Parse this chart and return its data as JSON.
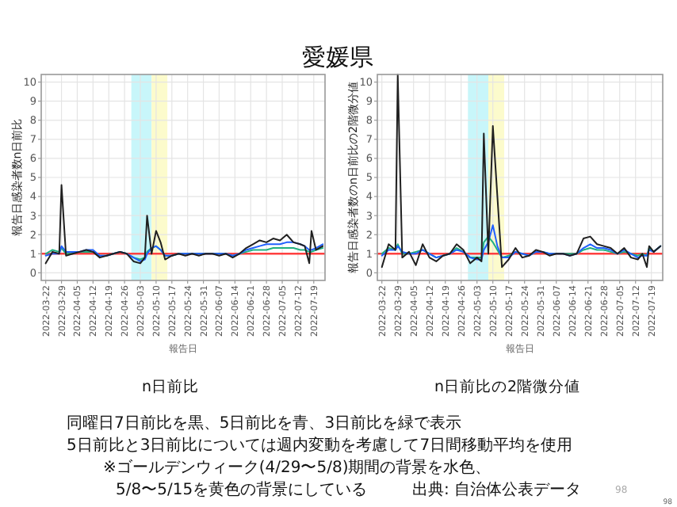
{
  "chart_data": [
    {
      "type": "line",
      "title": "n日前比",
      "xlabel": "報告日",
      "ylabel": "報告日感染者数n日前比",
      "x": [
        "2022-03-22",
        "2022-03-25",
        "2022-03-28",
        "2022-03-29",
        "2022-03-31",
        "2022-04-03",
        "2022-04-06",
        "2022-04-09",
        "2022-04-12",
        "2022-04-15",
        "2022-04-18",
        "2022-04-21",
        "2022-04-24",
        "2022-04-27",
        "2022-04-30",
        "2022-05-03",
        "2022-05-05",
        "2022-05-06",
        "2022-05-08",
        "2022-05-10",
        "2022-05-12",
        "2022-05-14",
        "2022-05-17",
        "2022-05-20",
        "2022-05-23",
        "2022-05-26",
        "2022-05-29",
        "2022-06-01",
        "2022-06-04",
        "2022-06-07",
        "2022-06-10",
        "2022-06-13",
        "2022-06-16",
        "2022-06-19",
        "2022-06-22",
        "2022-06-25",
        "2022-06-28",
        "2022-07-01",
        "2022-07-04",
        "2022-07-07",
        "2022-07-10",
        "2022-07-13",
        "2022-07-15",
        "2022-07-17",
        "2022-07-18",
        "2022-07-20",
        "2022-07-23"
      ],
      "series": [
        {
          "color": "#20b080",
          "values": [
            1.0,
            1.2,
            1.1,
            1.3,
            1.0,
            1.0,
            1.1,
            1.1,
            1.1,
            0.9,
            0.9,
            1.0,
            1.1,
            1.0,
            0.8,
            0.7,
            0.8,
            1.1,
            1.3,
            1.4,
            1.2,
            0.9,
            0.9,
            1.0,
            1.0,
            1.0,
            1.0,
            1.0,
            1.0,
            1.0,
            1.0,
            0.9,
            1.0,
            1.1,
            1.2,
            1.2,
            1.2,
            1.3,
            1.3,
            1.3,
            1.3,
            1.2,
            1.2,
            1.1,
            1.1,
            1.2,
            1.3
          ]
        },
        {
          "color": "#2060ff",
          "values": [
            0.9,
            1.0,
            1.0,
            1.4,
            1.1,
            1.1,
            1.1,
            1.2,
            1.2,
            0.9,
            0.9,
            1.0,
            1.1,
            1.0,
            0.8,
            0.6,
            0.7,
            1.0,
            1.3,
            1.4,
            1.2,
            0.9,
            0.9,
            1.0,
            1.0,
            1.0,
            1.0,
            1.0,
            1.0,
            1.0,
            1.0,
            0.9,
            1.0,
            1.2,
            1.3,
            1.4,
            1.5,
            1.5,
            1.5,
            1.6,
            1.6,
            1.5,
            1.4,
            1.2,
            1.2,
            1.3,
            1.5
          ]
        },
        {
          "color": "#202020",
          "values": [
            0.5,
            1.1,
            1.0,
            4.6,
            0.9,
            1.0,
            1.1,
            1.2,
            1.1,
            0.8,
            0.9,
            1.0,
            1.1,
            1.0,
            0.6,
            0.5,
            0.8,
            3.0,
            1.0,
            2.2,
            1.6,
            0.7,
            0.9,
            1.0,
            0.9,
            1.0,
            0.9,
            1.0,
            1.0,
            0.9,
            1.0,
            0.8,
            1.0,
            1.3,
            1.5,
            1.7,
            1.6,
            1.8,
            1.7,
            2.0,
            1.6,
            1.5,
            1.4,
            0.5,
            2.2,
            1.2,
            1.4
          ]
        }
      ],
      "xlim": [
        "2022-03-20",
        "2022-07-24"
      ],
      "xticks": [
        "2022-03-22",
        "2022-03-29",
        "2022-04-05",
        "2022-04-12",
        "2022-04-19",
        "2022-04-26",
        "2022-05-03",
        "2022-05-10",
        "2022-05-17",
        "2022-05-24",
        "2022-05-31",
        "2022-06-07",
        "2022-06-14",
        "2022-06-21",
        "2022-06-28",
        "2022-07-05",
        "2022-07-12",
        "2022-07-19"
      ],
      "ylim": [
        -0.4,
        10.4
      ],
      "yticks": [
        0,
        1,
        2,
        3,
        4,
        5,
        6,
        7,
        8,
        9,
        10
      ],
      "grid": true,
      "ref_lines": [
        {
          "axis": "y",
          "value": 1,
          "color": "#ff4040"
        }
      ],
      "bands": [
        {
          "axis": "x",
          "from": "2022-04-29",
          "to": "2022-05-08",
          "color": "#c8f6fa"
        },
        {
          "axis": "x",
          "from": "2022-05-08",
          "to": "2022-05-15",
          "color": "#fcfbcc"
        }
      ]
    },
    {
      "type": "line",
      "title": "n日前比の2階微分値",
      "xlabel": "報告日",
      "ylabel": "報告日感染者数のn日前比の2階微分値",
      "x": [
        "2022-03-22",
        "2022-03-25",
        "2022-03-28",
        "2022-03-29",
        "2022-03-31",
        "2022-04-03",
        "2022-04-06",
        "2022-04-09",
        "2022-04-12",
        "2022-04-15",
        "2022-04-18",
        "2022-04-21",
        "2022-04-24",
        "2022-04-27",
        "2022-04-30",
        "2022-05-03",
        "2022-05-05",
        "2022-05-06",
        "2022-05-08",
        "2022-05-10",
        "2022-05-12",
        "2022-05-14",
        "2022-05-17",
        "2022-05-20",
        "2022-05-23",
        "2022-05-26",
        "2022-05-29",
        "2022-06-01",
        "2022-06-04",
        "2022-06-07",
        "2022-06-10",
        "2022-06-13",
        "2022-06-16",
        "2022-06-19",
        "2022-06-22",
        "2022-06-25",
        "2022-06-28",
        "2022-07-01",
        "2022-07-04",
        "2022-07-07",
        "2022-07-10",
        "2022-07-13",
        "2022-07-15",
        "2022-07-17",
        "2022-07-18",
        "2022-07-20",
        "2022-07-23"
      ],
      "series": [
        {
          "color": "#20b080",
          "values": [
            1.0,
            1.3,
            1.2,
            1.5,
            1.0,
            1.0,
            1.1,
            1.2,
            1.0,
            0.8,
            0.9,
            1.0,
            1.3,
            1.1,
            0.8,
            0.8,
            0.8,
            1.6,
            1.9,
            1.6,
            1.2,
            0.8,
            0.9,
            1.1,
            1.0,
            0.9,
            1.1,
            1.1,
            1.0,
            1.0,
            1.0,
            1.0,
            1.0,
            1.2,
            1.3,
            1.2,
            1.2,
            1.1,
            1.0,
            1.1,
            1.0,
            0.9,
            1.0,
            0.9,
            1.3,
            1.1,
            1.4
          ]
        },
        {
          "color": "#2060ff",
          "values": [
            0.9,
            1.2,
            1.2,
            1.4,
            1.1,
            1.0,
            1.0,
            1.2,
            1.0,
            0.8,
            0.9,
            1.0,
            1.2,
            1.1,
            0.8,
            0.7,
            0.7,
            1.2,
            1.6,
            2.5,
            1.4,
            0.8,
            0.8,
            1.1,
            1.0,
            0.9,
            1.1,
            1.1,
            1.0,
            1.0,
            1.0,
            0.9,
            1.0,
            1.3,
            1.5,
            1.3,
            1.3,
            1.2,
            1.0,
            1.2,
            1.0,
            0.8,
            0.9,
            0.9,
            1.2,
            1.1,
            1.4
          ]
        },
        {
          "color": "#202020",
          "values": [
            0.3,
            1.5,
            1.2,
            10.4,
            0.8,
            1.1,
            0.4,
            1.5,
            0.8,
            0.6,
            0.9,
            1.0,
            1.5,
            1.2,
            0.5,
            0.8,
            0.6,
            7.3,
            1.0,
            7.7,
            4.0,
            0.3,
            0.7,
            1.3,
            0.8,
            0.9,
            1.2,
            1.1,
            0.9,
            1.0,
            1.0,
            0.9,
            1.0,
            1.8,
            1.9,
            1.5,
            1.4,
            1.3,
            1.0,
            1.3,
            0.8,
            0.7,
            1.0,
            0.3,
            1.4,
            1.1,
            1.4
          ]
        }
      ],
      "xlim": [
        "2022-03-20",
        "2022-07-24"
      ],
      "xticks": [
        "2022-03-22",
        "2022-03-29",
        "2022-04-05",
        "2022-04-12",
        "2022-04-19",
        "2022-04-26",
        "2022-05-03",
        "2022-05-10",
        "2022-05-17",
        "2022-05-24",
        "2022-05-31",
        "2022-06-07",
        "2022-06-14",
        "2022-06-21",
        "2022-06-28",
        "2022-07-05",
        "2022-07-12",
        "2022-07-19"
      ],
      "ylim": [
        -0.4,
        10.4
      ],
      "yticks": [
        0,
        1,
        2,
        3,
        4,
        5,
        6,
        7,
        8,
        9,
        10
      ],
      "grid": true,
      "ref_lines": [
        {
          "axis": "y",
          "value": 1,
          "color": "#ff4040"
        }
      ],
      "bands": [
        {
          "axis": "x",
          "from": "2022-04-29",
          "to": "2022-05-08",
          "color": "#c8f6fa"
        },
        {
          "axis": "x",
          "from": "2022-05-08",
          "to": "2022-05-15",
          "color": "#fcfbcc"
        }
      ]
    },
    {
      "type": "other",
      "title": "愛媛県",
      "annotations": [
        "同曜日7日前比を黒、5日前比を青、3日前比を緑で表示",
        "5日前比と3日前比については週内変動を考慮して7日間移動平均を使用",
        "※ゴールデンウィーク(4/29〜5/8)期間の背景を水色、",
        "5/8〜5/15を黄色の背景にしている",
        "出典: 自治体公表データ",
        "98",
        "98"
      ]
    }
  ]
}
